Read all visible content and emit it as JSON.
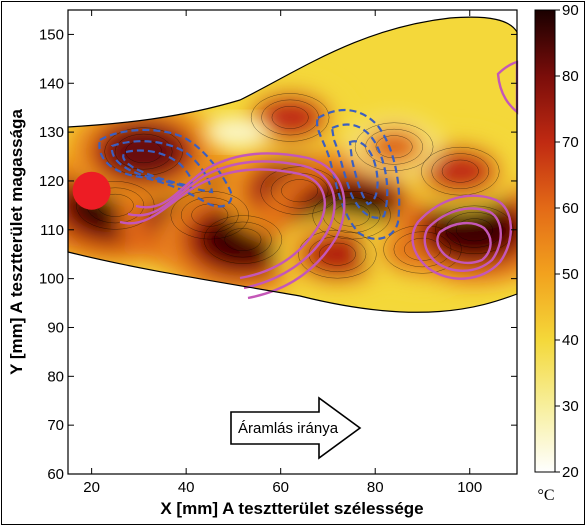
{
  "chart_data": {
    "type": "heatmap",
    "xlabel": "X [mm] A tesztterület szélessége",
    "ylabel": "Y [mm] A tesztterület magassága",
    "xlim": [
      15,
      110
    ],
    "ylim": [
      60,
      155
    ],
    "xticks": [
      20,
      40,
      60,
      80,
      100
    ],
    "yticks": [
      60,
      70,
      80,
      90,
      100,
      110,
      120,
      130,
      140,
      150
    ],
    "colorbar": {
      "label": "°C",
      "range": [
        20,
        90
      ],
      "ticks": [
        20,
        30,
        40,
        50,
        60,
        70,
        80,
        90
      ],
      "colors": [
        "#ffffff",
        "#f7ef9c",
        "#f4d83a",
        "#f2a21e",
        "#e36a17",
        "#c02a12",
        "#7a0d0a",
        "#1a0000"
      ]
    },
    "annotation": "Áramlás iránya",
    "hotspots": [
      {
        "x": 25,
        "y": 115,
        "temp": 88
      },
      {
        "x": 45,
        "y": 113,
        "temp": 90
      },
      {
        "x": 52,
        "y": 108,
        "temp": 86
      },
      {
        "x": 64,
        "y": 118,
        "temp": 82
      },
      {
        "x": 75,
        "y": 113,
        "temp": 88
      },
      {
        "x": 72,
        "y": 105,
        "temp": 72
      },
      {
        "x": 90,
        "y": 106,
        "temp": 70
      },
      {
        "x": 101,
        "y": 110,
        "temp": 86
      },
      {
        "x": 98,
        "y": 122,
        "temp": 70
      },
      {
        "x": 84,
        "y": 127,
        "temp": 62
      },
      {
        "x": 62,
        "y": 133,
        "temp": 70
      },
      {
        "x": 31,
        "y": 126,
        "temp": 82
      }
    ],
    "cold_region": {
      "x": 51,
      "y": 130,
      "temp": 25
    },
    "source_marker": {
      "x": 20,
      "y": 118
    }
  },
  "colors": {
    "cold_contour": "#3b5fc0",
    "warm_contour": "#c457b8",
    "marker": "#ed1c24"
  }
}
